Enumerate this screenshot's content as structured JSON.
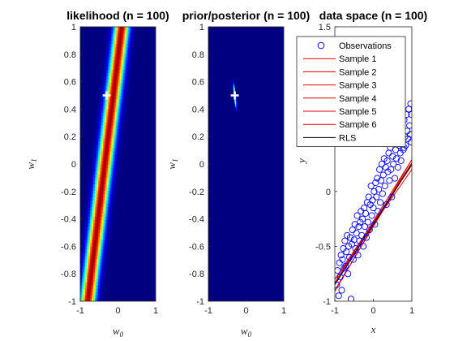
{
  "chart_data": [
    {
      "type": "heatmap",
      "title": "likelihood (n = 100)",
      "xlabel": "w",
      "xlabel_sub": "0",
      "ylabel": "w",
      "ylabel_sub": "1",
      "xlim": [
        -1,
        1
      ],
      "ylim": [
        -1,
        1
      ],
      "xticks": [
        -1,
        0,
        1
      ],
      "yticks": [
        -1,
        -0.8,
        -0.6,
        -0.4,
        -0.2,
        0,
        0.2,
        0.4,
        0.6,
        0.8,
        1
      ],
      "colormap": "jet",
      "ridge": {
        "w0_at_w1_minus1": -0.8,
        "w0_at_w1_plus1": 0.1
      },
      "marker": {
        "w0": -0.3,
        "w1": 0.5,
        "symbol": "+"
      },
      "grid": false
    },
    {
      "type": "heatmap",
      "title": "prior/posterior (n = 100)",
      "xlabel": "w",
      "xlabel_sub": "0",
      "ylabel": "w",
      "ylabel_sub": "1",
      "xlim": [
        -1,
        1
      ],
      "ylim": [
        -1,
        1
      ],
      "xticks": [
        -1,
        0,
        1
      ],
      "yticks": [
        -1,
        -0.8,
        -0.6,
        -0.4,
        -0.2,
        0,
        0.2,
        0.4,
        0.6,
        0.8,
        1
      ],
      "colormap": "jet",
      "peak": {
        "w0": -0.3,
        "w1": 0.5
      },
      "marker": {
        "w0": -0.3,
        "w1": 0.5,
        "symbol": "+"
      },
      "grid": false
    },
    {
      "type": "scatter",
      "title": "data space (n = 100)",
      "xlabel": "x",
      "ylabel": "y",
      "xlim": [
        -1,
        1
      ],
      "ylim": [
        -1,
        1.5
      ],
      "xticks": [
        -1,
        0,
        1
      ],
      "yticks": [
        -1,
        -0.5,
        0,
        0.5,
        1,
        1.5
      ],
      "legend_position": "top-right",
      "observations": {
        "name": "Observations",
        "color": "#0000ff",
        "x": [
          -0.95,
          -0.93,
          -0.9,
          -0.88,
          -0.86,
          -0.84,
          -0.82,
          -0.8,
          -0.78,
          -0.76,
          -0.74,
          -0.72,
          -0.7,
          -0.68,
          -0.66,
          -0.64,
          -0.62,
          -0.6,
          -0.58,
          -0.56,
          -0.54,
          -0.52,
          -0.5,
          -0.48,
          -0.46,
          -0.44,
          -0.42,
          -0.4,
          -0.38,
          -0.36,
          -0.34,
          -0.32,
          -0.3,
          -0.28,
          -0.26,
          -0.24,
          -0.22,
          -0.2,
          -0.18,
          -0.16,
          -0.14,
          -0.12,
          -0.1,
          -0.08,
          -0.06,
          -0.04,
          -0.02,
          0,
          0.02,
          0.04,
          0.06,
          0.08,
          0.1,
          0.12,
          0.14,
          0.16,
          0.18,
          0.2,
          0.22,
          0.24,
          0.26,
          0.28,
          0.3,
          0.32,
          0.34,
          0.36,
          0.38,
          0.4,
          0.42,
          0.44,
          0.46,
          0.48,
          0.5,
          0.52,
          0.54,
          0.56,
          0.58,
          0.6,
          0.62,
          0.64,
          0.66,
          0.68,
          0.7,
          0.72,
          0.74,
          0.76,
          0.78,
          0.8,
          0.82,
          0.84,
          0.86,
          0.88,
          0.9,
          0.92,
          0.94,
          0.96,
          0.97,
          0.98,
          0.99,
          0.8
        ],
        "y": [
          -0.85,
          -0.72,
          -0.95,
          -0.65,
          -0.78,
          -0.58,
          -0.9,
          -0.62,
          -0.52,
          -0.7,
          -0.45,
          -0.68,
          -0.55,
          -0.4,
          -0.75,
          -0.5,
          -0.6,
          -0.42,
          -0.98,
          -0.48,
          -0.35,
          -0.62,
          -0.44,
          -0.3,
          -0.52,
          -0.38,
          -0.22,
          -0.58,
          -0.32,
          -0.45,
          -0.28,
          -0.18,
          -0.4,
          -0.25,
          -0.5,
          -0.15,
          -0.32,
          -0.2,
          -0.42,
          -0.1,
          -0.28,
          -0.05,
          -0.35,
          -0.12,
          0.05,
          -0.22,
          -0.08,
          -0.15,
          0.0,
          -0.3,
          0.08,
          -0.05,
          0.12,
          -0.18,
          0.02,
          0.2,
          -0.1,
          0.1,
          0.25,
          -0.02,
          0.15,
          0.3,
          0.05,
          0.22,
          -0.12,
          0.28,
          0.18,
          0.35,
          0.1,
          0.4,
          0.2,
          -0.05,
          0.32,
          0.25,
          0.45,
          0.12,
          0.38,
          0.3,
          0.5,
          0.22,
          0.42,
          0.55,
          0.35,
          0.28,
          0.6,
          0.45,
          0.38,
          0.65,
          0.5,
          0.42,
          0.7,
          0.55,
          0.48,
          0.75,
          0.6,
          0.52,
          0.8,
          0.45,
          0.7,
          0.4
        ]
      },
      "samples": {
        "names": [
          "Sample 1",
          "Sample 2",
          "Sample 3",
          "Sample 4",
          "Sample 5",
          "Sample 6"
        ],
        "color": "#e00000",
        "intercepts": [
          -0.31,
          -0.29,
          -0.32,
          -0.28,
          -0.3,
          -0.27
        ],
        "slopes": [
          0.6,
          0.55,
          0.58,
          0.52,
          0.5,
          0.56
        ]
      },
      "rls": {
        "name": "RLS",
        "color": "#000000",
        "intercept": -0.3,
        "slope": 0.55
      },
      "grid": false
    }
  ]
}
